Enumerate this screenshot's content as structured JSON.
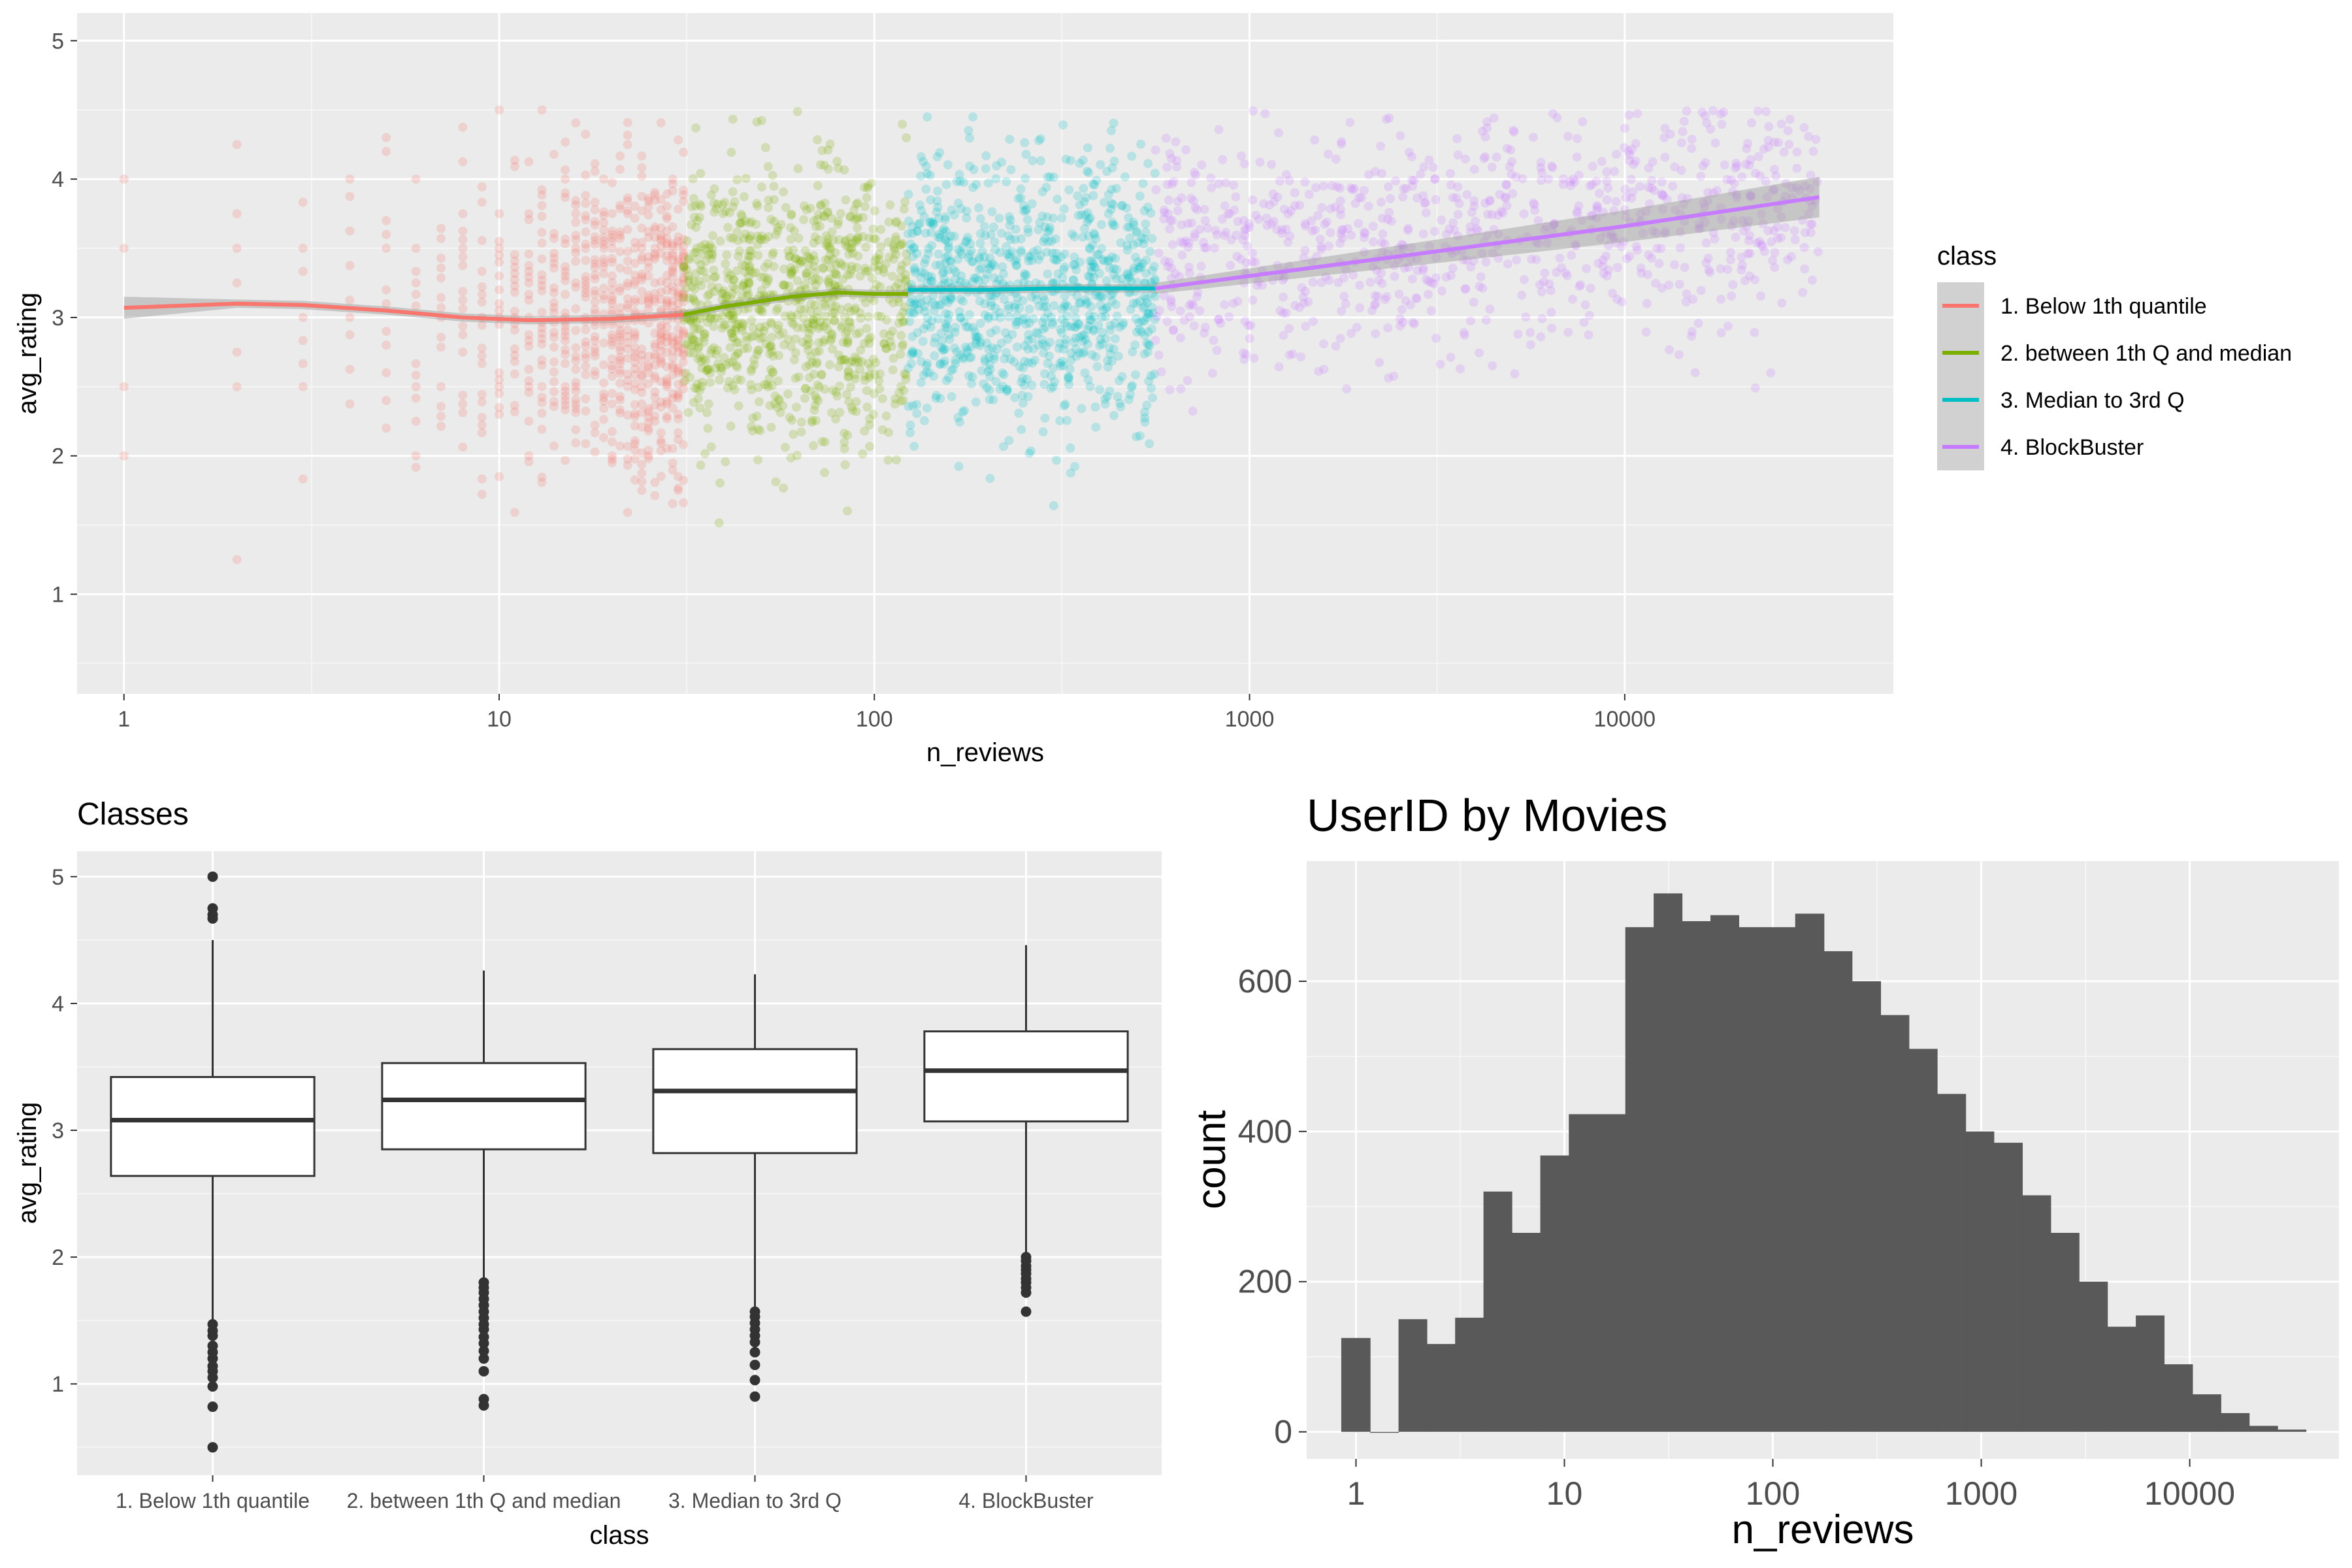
{
  "chart_data": [
    {
      "type": "scatter",
      "xlabel": "n_reviews",
      "ylabel": "avg_rating",
      "xscale": "log10",
      "xlim": [
        0.75,
        52000
      ],
      "ylim": [
        0.28,
        5.2
      ],
      "x_ticks": [
        1,
        10,
        100,
        1000,
        10000
      ],
      "x_tick_labels": [
        "1",
        "10",
        "100",
        "1000",
        "10000"
      ],
      "y_ticks": [
        1,
        2,
        3,
        4,
        5
      ],
      "y_tick_labels": [
        "1",
        "2",
        "3",
        "4",
        "5"
      ],
      "grid": true,
      "legend": {
        "title": "class",
        "position": "right"
      },
      "series": [
        {
          "name": "1. Below 1th quantile",
          "color": "#F8766D",
          "x_range": [
            1,
            31
          ],
          "rating_center": 3.0,
          "smooth": [
            [
              1,
              3.07
            ],
            [
              2,
              3.1
            ],
            [
              3,
              3.09
            ],
            [
              5,
              3.05
            ],
            [
              8,
              3.0
            ],
            [
              12,
              2.98
            ],
            [
              20,
              2.99
            ],
            [
              31,
              3.02
            ]
          ]
        },
        {
          "name": "2. between 1th Q and median",
          "color": "#7CAE00",
          "x_range": [
            31,
            123
          ],
          "rating_center": 3.1,
          "smooth": [
            [
              31,
              3.02
            ],
            [
              40,
              3.08
            ],
            [
              60,
              3.15
            ],
            [
              80,
              3.18
            ],
            [
              100,
              3.17
            ],
            [
              123,
              3.17
            ]
          ]
        },
        {
          "name": "3. Median to 3rd Q",
          "color": "#00BFC4",
          "x_range": [
            123,
            560
          ],
          "rating_center": 3.2,
          "smooth": [
            [
              123,
              3.2
            ],
            [
              200,
              3.2
            ],
            [
              300,
              3.21
            ],
            [
              450,
              3.21
            ],
            [
              560,
              3.21
            ]
          ]
        },
        {
          "name": "4. BlockBuster",
          "color": "#C77CFF",
          "x_range": [
            560,
            33000
          ],
          "rating_center": 3.4,
          "smooth": [
            [
              560,
              3.21
            ],
            [
              1000,
              3.3
            ],
            [
              3000,
              3.47
            ],
            [
              10000,
              3.66
            ],
            [
              33000,
              3.87
            ]
          ]
        }
      ]
    },
    {
      "type": "box",
      "title": "Classes",
      "xlabel": "class",
      "ylabel": "avg_rating",
      "ylim": [
        0.28,
        5.2
      ],
      "y_ticks": [
        1,
        2,
        3,
        4,
        5
      ],
      "y_tick_labels": [
        "1",
        "2",
        "3",
        "4",
        "5"
      ],
      "categories": [
        "1. Below 1th quantile",
        "2. between 1th Q and median",
        "3. Median to 3rd Q",
        "4. BlockBuster"
      ],
      "boxes": [
        {
          "q1": 2.64,
          "median": 3.08,
          "q3": 3.42,
          "whisker_low": 1.5,
          "whisker_high": 4.5,
          "outliers": [
            5.0,
            4.75,
            4.7,
            4.67,
            1.47,
            1.42,
            1.38,
            1.3,
            1.25,
            1.2,
            1.14,
            1.1,
            1.05,
            0.98,
            0.82,
            0.5
          ]
        },
        {
          "q1": 2.85,
          "median": 3.24,
          "q3": 3.53,
          "whisker_low": 1.83,
          "whisker_high": 4.26,
          "outliers": [
            1.8,
            1.76,
            1.72,
            1.67,
            1.62,
            1.57,
            1.52,
            1.47,
            1.43,
            1.37,
            1.32,
            1.26,
            1.2,
            1.1,
            0.88,
            0.83
          ]
        },
        {
          "q1": 2.82,
          "median": 3.31,
          "q3": 3.64,
          "whisker_low": 1.6,
          "whisker_high": 4.23,
          "outliers": [
            1.57,
            1.53,
            1.48,
            1.43,
            1.38,
            1.33,
            1.25,
            1.15,
            1.03,
            0.9
          ]
        },
        {
          "q1": 3.07,
          "median": 3.47,
          "q3": 3.78,
          "whisker_low": 2.02,
          "whisker_high": 4.46,
          "outliers": [
            2.0,
            1.97,
            1.93,
            1.9,
            1.87,
            1.83,
            1.8,
            1.76,
            1.72,
            1.57
          ]
        }
      ]
    },
    {
      "type": "bar",
      "subtype": "histogram",
      "title": "UserID by Movies",
      "xlabel": "n_reviews",
      "ylabel": "count",
      "xscale": "log10",
      "xlim": [
        0.58,
        52000
      ],
      "ylim": [
        -36,
        760
      ],
      "x_ticks": [
        1,
        10,
        100,
        1000,
        10000
      ],
      "x_tick_labels": [
        "1",
        "10",
        "100",
        "1000",
        "10000"
      ],
      "y_ticks": [
        0,
        200,
        400,
        600
      ],
      "y_tick_labels": [
        "0",
        "200",
        "400",
        "600"
      ],
      "bar_color": "#595959",
      "bins": [
        {
          "x0": 0.85,
          "x1": 1.17,
          "count": 125
        },
        {
          "x0": 1.17,
          "x1": 1.6,
          "count": 0
        },
        {
          "x0": 1.6,
          "x1": 2.19,
          "count": 150
        },
        {
          "x0": 2.19,
          "x1": 2.99,
          "count": 117
        },
        {
          "x0": 2.99,
          "x1": 4.09,
          "count": 152
        },
        {
          "x0": 4.09,
          "x1": 5.6,
          "count": 320
        },
        {
          "x0": 5.6,
          "x1": 7.66,
          "count": 265
        },
        {
          "x0": 7.66,
          "x1": 10.5,
          "count": 368
        },
        {
          "x0": 10.5,
          "x1": 14.3,
          "count": 423
        },
        {
          "x0": 14.3,
          "x1": 19.6,
          "count": 423
        },
        {
          "x0": 19.6,
          "x1": 26.8,
          "count": 672
        },
        {
          "x0": 26.8,
          "x1": 36.7,
          "count": 717
        },
        {
          "x0": 36.7,
          "x1": 50.2,
          "count": 680
        },
        {
          "x0": 50.2,
          "x1": 68.7,
          "count": 688
        },
        {
          "x0": 68.7,
          "x1": 93.9,
          "count": 672
        },
        {
          "x0": 93.9,
          "x1": 128,
          "count": 672
        },
        {
          "x0": 128,
          "x1": 176,
          "count": 690
        },
        {
          "x0": 176,
          "x1": 240,
          "count": 640
        },
        {
          "x0": 240,
          "x1": 329,
          "count": 600
        },
        {
          "x0": 329,
          "x1": 450,
          "count": 555
        },
        {
          "x0": 450,
          "x1": 615,
          "count": 510
        },
        {
          "x0": 615,
          "x1": 842,
          "count": 450
        },
        {
          "x0": 842,
          "x1": 1150,
          "count": 400
        },
        {
          "x0": 1150,
          "x1": 1575,
          "count": 385
        },
        {
          "x0": 1575,
          "x1": 2155,
          "count": 315
        },
        {
          "x0": 2155,
          "x1": 2947,
          "count": 265
        },
        {
          "x0": 2947,
          "x1": 4032,
          "count": 200
        },
        {
          "x0": 4032,
          "x1": 5515,
          "count": 140
        },
        {
          "x0": 5515,
          "x1": 7544,
          "count": 155
        },
        {
          "x0": 7544,
          "x1": 10320,
          "count": 90
        },
        {
          "x0": 10320,
          "x1": 14117,
          "count": 50
        },
        {
          "x0": 14117,
          "x1": 19311,
          "count": 25
        },
        {
          "x0": 19311,
          "x1": 26416,
          "count": 8
        },
        {
          "x0": 26416,
          "x1": 36135,
          "count": 3
        }
      ]
    }
  ]
}
